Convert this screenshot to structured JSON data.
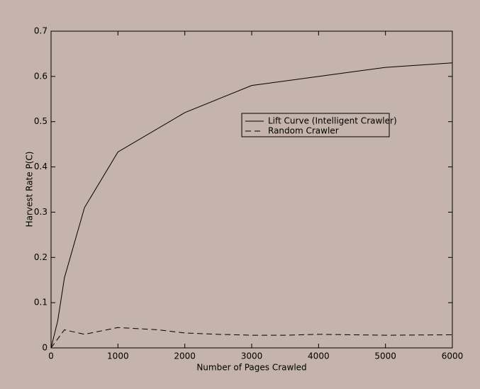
{
  "chart_data": {
    "type": "line",
    "xlabel": "Number of Pages Crawled",
    "ylabel": "Harvest Rate P(C)",
    "xlim": [
      0,
      6000
    ],
    "xticks": [
      0,
      1000,
      2000,
      3000,
      4000,
      5000,
      6000
    ],
    "ylim": [
      0,
      0.7
    ],
    "yticks": [
      0,
      0.1,
      0.2,
      0.3,
      0.4,
      0.5,
      0.6,
      0.7
    ],
    "grid": false,
    "legend": "upper-center",
    "series": [
      {
        "name": "Lift Curve (Intelligent Crawler)",
        "color": "#000000",
        "dash": "solid",
        "x": [
          0,
          100,
          200,
          500,
          1000,
          2000,
          3000,
          4000,
          5000,
          6000
        ],
        "values": [
          0,
          0.06,
          0.155,
          0.31,
          0.433,
          0.52,
          0.58,
          0.6,
          0.62,
          0.63
        ]
      },
      {
        "name": "Random Crawler",
        "color": "#000000",
        "dash": "dashed",
        "x": [
          0,
          200,
          500,
          1000,
          1600,
          2000,
          2500,
          3000,
          3500,
          4000,
          5000,
          6000
        ],
        "values": [
          0,
          0.04,
          0.03,
          0.045,
          0.04,
          0.033,
          0.03,
          0.028,
          0.028,
          0.03,
          0.028,
          0.029
        ]
      }
    ]
  }
}
